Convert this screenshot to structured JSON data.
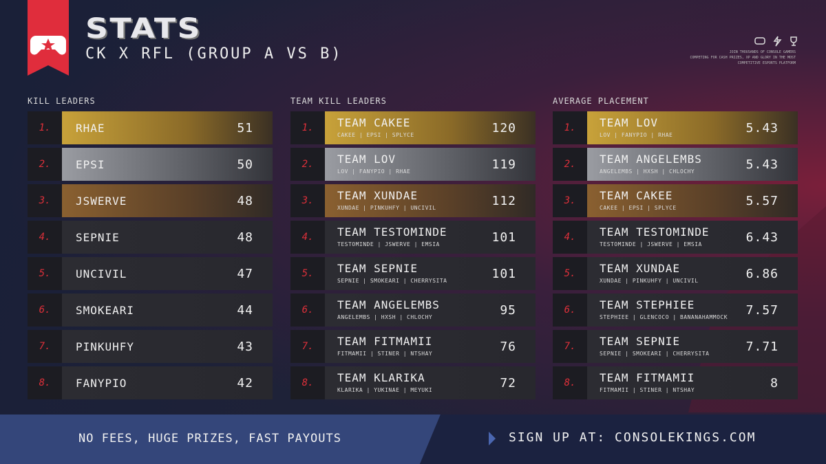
{
  "header": {
    "title": "STATS",
    "subtitle": "CK X RFL (GROUP A VS B)",
    "tagline": [
      "JOIN THOUSANDS OF CONSOLE GAMERS",
      "COMPETING FOR CASH PRIZES, XP AND GLORY IN THE MOST",
      "COMPETITIVE ESPORTS PLATFORM"
    ]
  },
  "columns": [
    {
      "heading": "KILL LEADERS",
      "rows": [
        {
          "rank": "1.",
          "name": "RHAE",
          "value": 51
        },
        {
          "rank": "2.",
          "name": "EPSI",
          "value": 50
        },
        {
          "rank": "3.",
          "name": "JSWERVE",
          "value": 48
        },
        {
          "rank": "4.",
          "name": "SEPNIE",
          "value": 48
        },
        {
          "rank": "5.",
          "name": "UNCIVIL",
          "value": 47
        },
        {
          "rank": "6.",
          "name": "SMOKEARI",
          "value": 44
        },
        {
          "rank": "7.",
          "name": "PINKUHFY",
          "value": 43
        },
        {
          "rank": "8.",
          "name": "FANYPIO",
          "value": 42
        }
      ]
    },
    {
      "heading": "TEAM KILL LEADERS",
      "rows": [
        {
          "rank": "1.",
          "name": "TEAM CAKEE",
          "players": "CAKEE | EPSI | SPLYCE",
          "value": 120
        },
        {
          "rank": "2.",
          "name": "TEAM LOV",
          "players": "LOV | FANYPIO | RHAE",
          "value": 119
        },
        {
          "rank": "3.",
          "name": "TEAM XUNDAE",
          "players": "XUNDAE | PINKUHFY | UNCIVIL",
          "value": 112
        },
        {
          "rank": "4.",
          "name": "TEAM TESTOMINDE",
          "players": "TESTOMINDE | JSWERVE | EMSIA",
          "value": 101
        },
        {
          "rank": "5.",
          "name": "TEAM SEPNIE",
          "players": "SEPNIE | SMOKEARI | CHERRYSITA",
          "value": 101
        },
        {
          "rank": "6.",
          "name": "TEAM ANGELEMBS",
          "players": "ANGELEMBS | HXSH | CHLOCHY",
          "value": 95
        },
        {
          "rank": "7.",
          "name": "TEAM FITMAMII",
          "players": "FITMAMII | STINER | NTSHAY",
          "value": 76
        },
        {
          "rank": "8.",
          "name": "TEAM KLARIKA",
          "players": "KLARIKA | YUKINAE | MEYUKI",
          "value": 72
        }
      ]
    },
    {
      "heading": "AVERAGE PLACEMENT",
      "rows": [
        {
          "rank": "1.",
          "name": "TEAM LOV",
          "players": "LOV | FANYPIO | RHAE",
          "value": 5.43
        },
        {
          "rank": "2.",
          "name": "TEAM ANGELEMBS",
          "players": "ANGELEMBS | HXSH | CHLOCHY",
          "value": 5.43
        },
        {
          "rank": "3.",
          "name": "TEAM CAKEE",
          "players": "CAKEE | EPSI | SPLYCE",
          "value": 5.57
        },
        {
          "rank": "4.",
          "name": "TEAM TESTOMINDE",
          "players": "TESTOMINDE | JSWERVE | EMSIA",
          "value": 6.43
        },
        {
          "rank": "5.",
          "name": "TEAM XUNDAE",
          "players": "XUNDAE | PINKUHFY | UNCIVIL",
          "value": 6.86
        },
        {
          "rank": "6.",
          "name": "TEAM STEPHIEE",
          "players": "STEPHIEE | GLENCOCO | BANANAHAMMOCK",
          "value": 7.57
        },
        {
          "rank": "7.",
          "name": "TEAM SEPNIE",
          "players": "SEPNIE | SMOKEARI | CHERRYSITA",
          "value": 7.71
        },
        {
          "rank": "8.",
          "name": "TEAM FITMAMII",
          "players": "FITMAMII | STINER | NTSHAY",
          "value": 8
        }
      ]
    }
  ],
  "footer": {
    "left": "NO FEES, HUGE PRIZES, FAST PAYOUTS",
    "right": "SIGN UP AT: CONSOLEKINGS.COM"
  }
}
